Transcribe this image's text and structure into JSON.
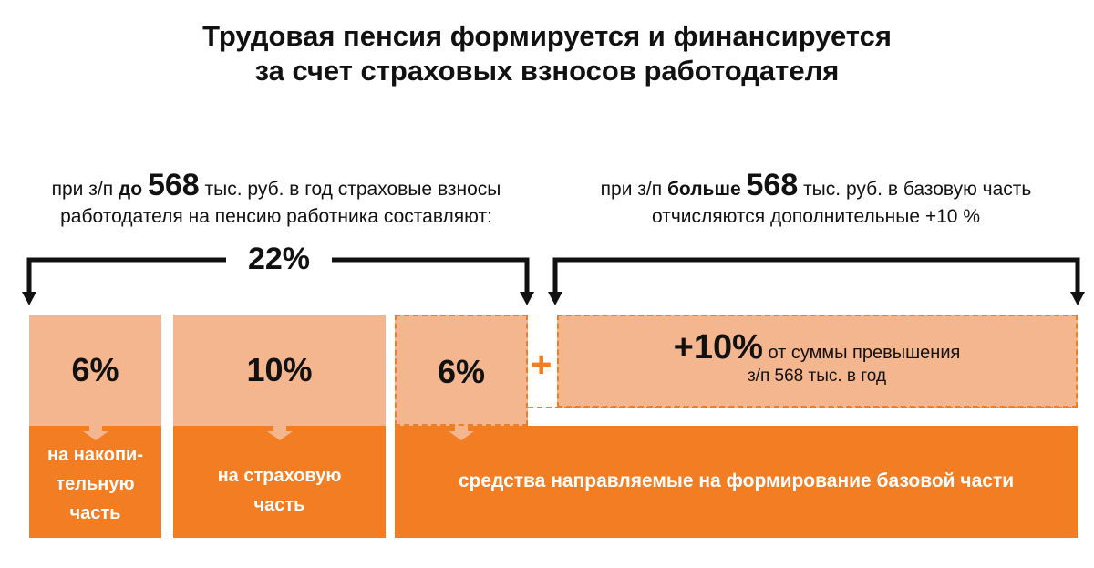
{
  "title": {
    "line1": "Трудовая пенсия формируется и финансируется",
    "line2": "за счет страховых взносов работодателя"
  },
  "left_caption": {
    "prefix": "при з/п ",
    "bold": "до",
    "number": "568",
    "rest": " тыс. руб. в год страховые взносы",
    "line2": "работодателя на пенсию работника составляют:"
  },
  "right_caption": {
    "prefix": "при з/п ",
    "bold": "больше",
    "number": "568",
    "rest": " тыс. руб. в базовую часть",
    "line2": "отчисляются дополнительные +10 %"
  },
  "total_percent": "22%",
  "blocks": [
    {
      "percent": "6%",
      "label_lines": [
        "на накопи-",
        "тельную",
        "часть"
      ]
    },
    {
      "percent": "10%",
      "label_lines": [
        "на страховую",
        "часть"
      ]
    },
    {
      "percent": "6%"
    }
  ],
  "plus_sign": "+",
  "extra": {
    "number": "+10%",
    "text": " от суммы превышения",
    "line2": "з/п  568 тыс. в год"
  },
  "base_label": "средства направляемые на формирование базовой части",
  "colors": {
    "orange": "#f27d22",
    "light_orange": "#f4b68f",
    "text": "#111111"
  }
}
